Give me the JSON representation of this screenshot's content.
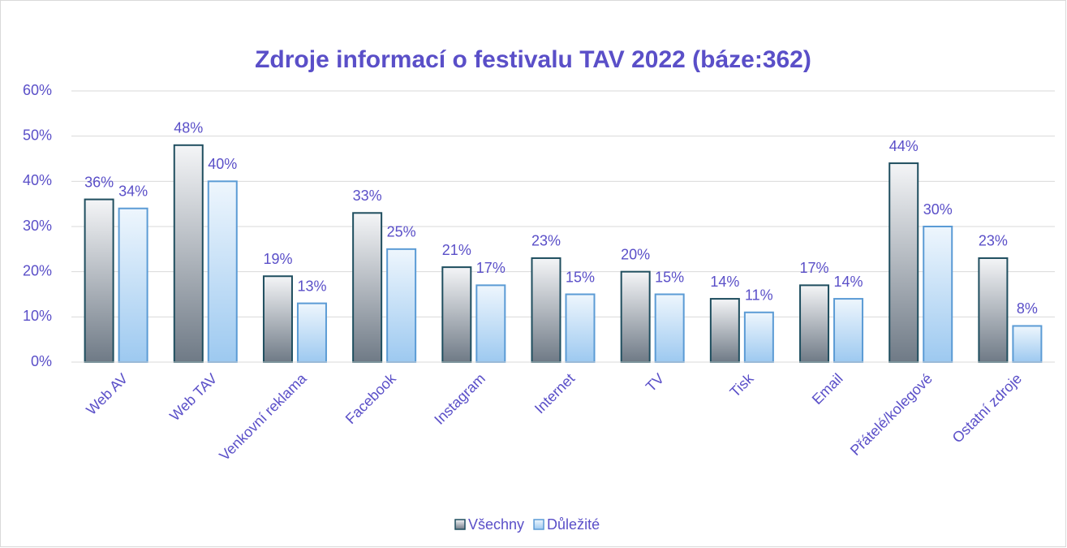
{
  "chart_data": {
    "type": "bar",
    "title": "Zdroje informací o festivalu TAV 2022 (báze:362)",
    "categories": [
      "Web AV",
      "Web TAV",
      "Venkovní reklama",
      "Facebook",
      "Instagram",
      "Internet",
      "TV",
      "Tisk",
      "Email",
      "Přátelé/kolegové",
      "Ostatní zdroje"
    ],
    "series": [
      {
        "name": "Všechny",
        "color": "#1f4e5f",
        "values": [
          36,
          48,
          19,
          33,
          21,
          23,
          20,
          14,
          17,
          44,
          23
        ],
        "value_labels": [
          "36%",
          "48%",
          "19%",
          "33%",
          "21%",
          "23%",
          "20%",
          "14%",
          "17%",
          "44%",
          "23%"
        ]
      },
      {
        "name": "Důležité",
        "color": "#5b9bd5",
        "values": [
          34,
          40,
          13,
          25,
          17,
          15,
          15,
          11,
          14,
          30,
          8
        ],
        "value_labels": [
          "34%",
          "40%",
          "13%",
          "25%",
          "17%",
          "15%",
          "15%",
          "11%",
          "14%",
          "30%",
          "8%"
        ]
      }
    ],
    "ylim": [
      0,
      60
    ],
    "yticks": [
      {
        "value": 0,
        "label": "0%"
      },
      {
        "value": 10,
        "label": "10%"
      },
      {
        "value": 20,
        "label": "20%"
      },
      {
        "value": 30,
        "label": "30%"
      },
      {
        "value": 40,
        "label": "40%"
      },
      {
        "value": 50,
        "label": "50%"
      },
      {
        "value": 60,
        "label": "60%"
      }
    ],
    "grid": true,
    "legend": "bottom"
  }
}
